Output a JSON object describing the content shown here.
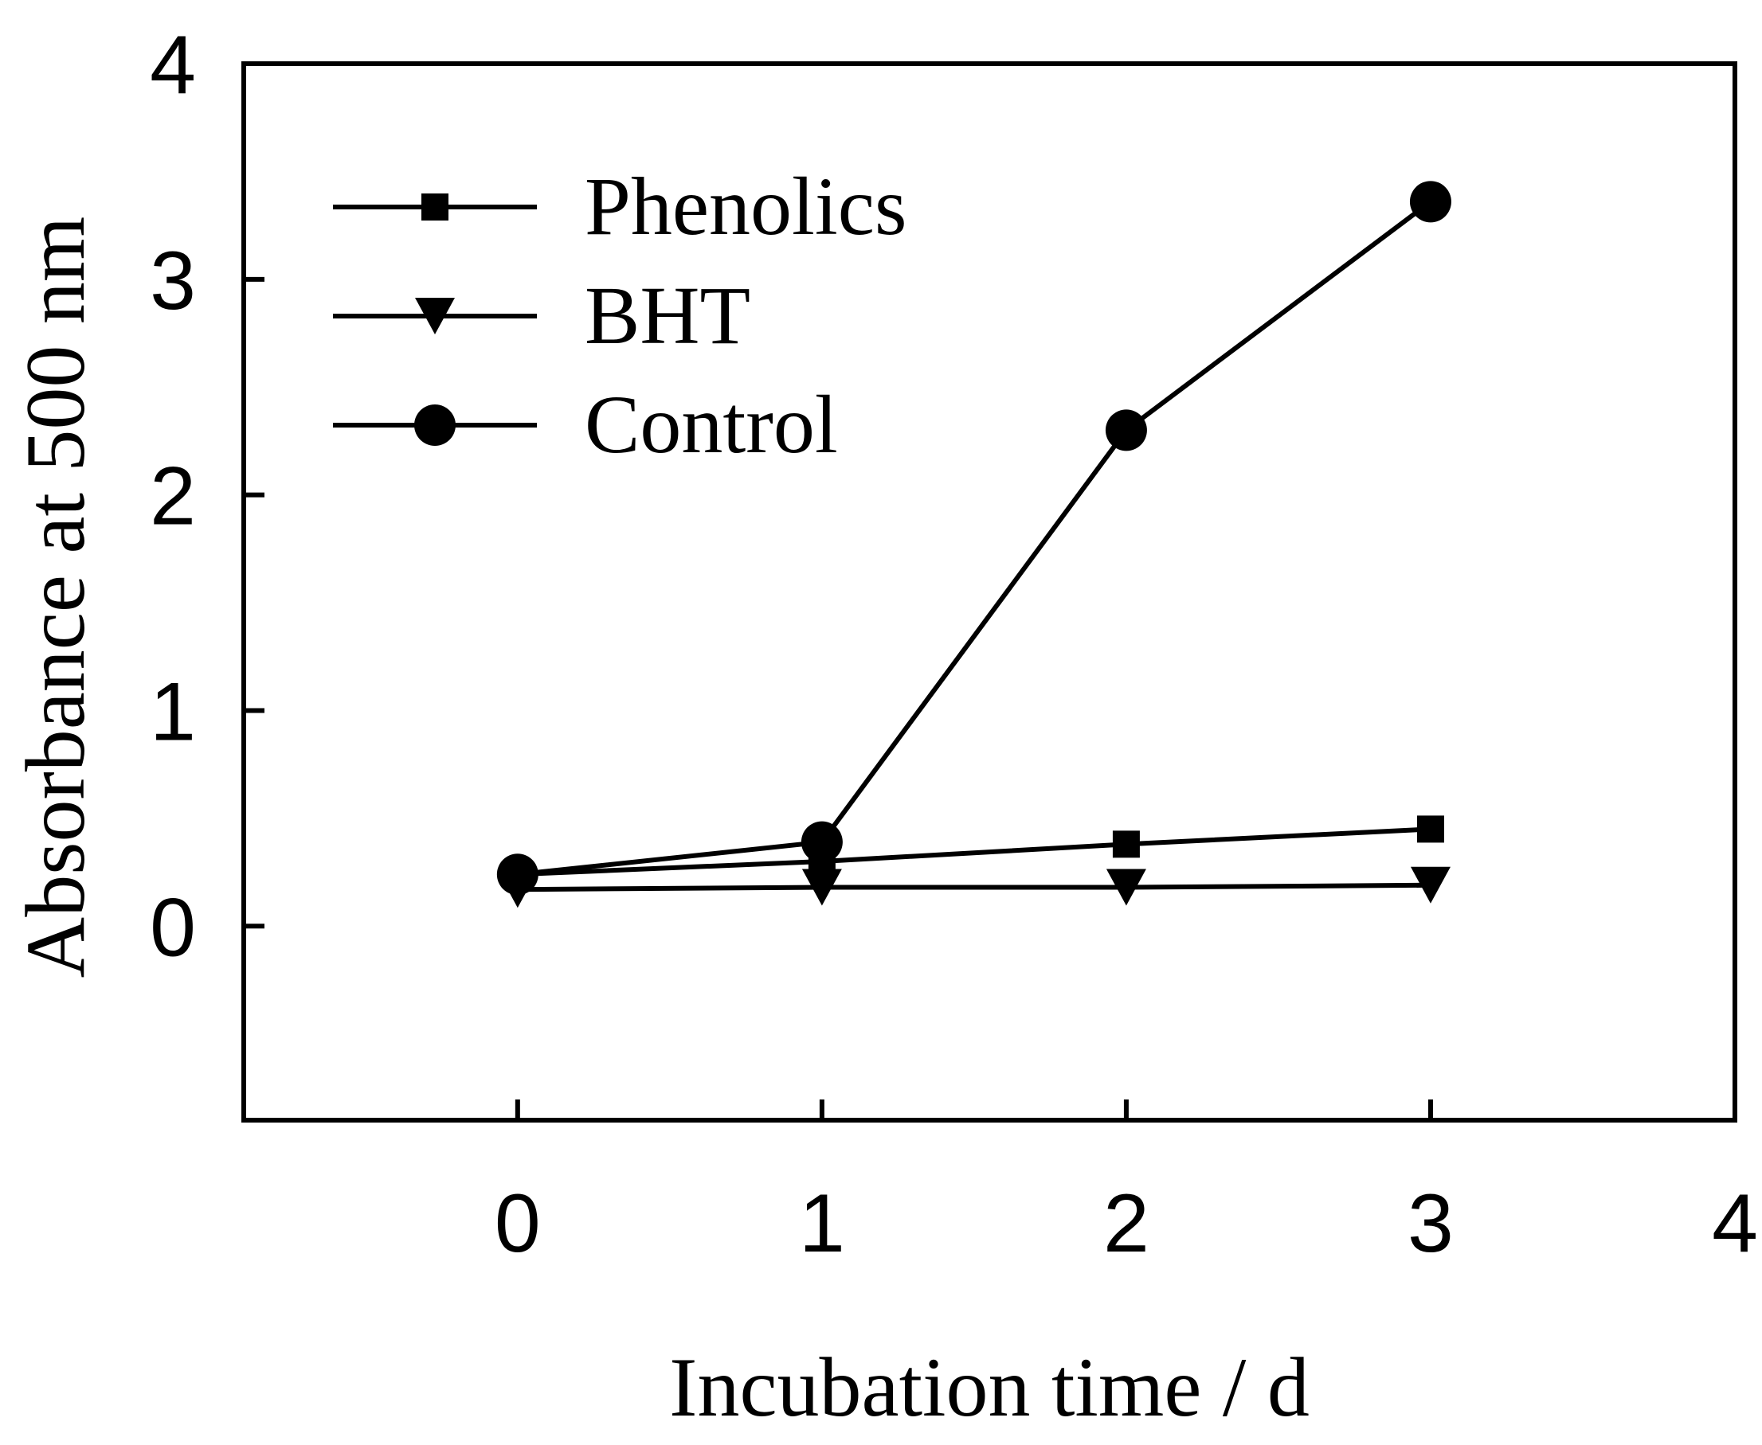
{
  "chart_data": {
    "type": "line",
    "title": "",
    "xlabel": "Incubation time / d",
    "ylabel": "Absorbance at  500 nm",
    "xlim": [
      -0.9,
      4
    ],
    "ylim": [
      -0.9,
      4
    ],
    "xticks": [
      0,
      1,
      2,
      3,
      4
    ],
    "yticks": [
      0,
      1,
      2,
      3,
      4
    ],
    "grid": false,
    "legend_position": "top-left",
    "series": [
      {
        "name": "Phenolics",
        "marker": "square",
        "x": [
          0,
          1,
          2,
          3
        ],
        "y": [
          0.24,
          0.3,
          0.38,
          0.45
        ],
        "color": "#000000"
      },
      {
        "name": "BHT",
        "marker": "triangle-down",
        "x": [
          0,
          1,
          2,
          3
        ],
        "y": [
          0.17,
          0.18,
          0.18,
          0.19
        ],
        "color": "#000000"
      },
      {
        "name": "Control",
        "marker": "circle",
        "x": [
          0,
          1,
          2,
          3
        ],
        "y": [
          0.24,
          0.39,
          2.3,
          3.36
        ],
        "color": "#000000"
      }
    ]
  }
}
